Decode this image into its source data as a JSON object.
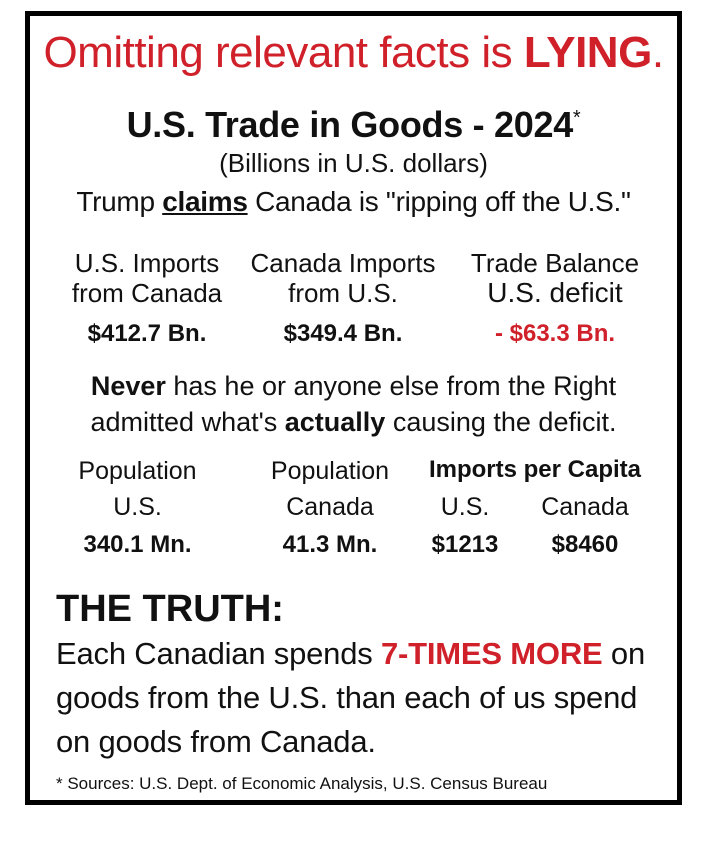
{
  "headline": {
    "prefix": "Omitting relevant facts is ",
    "emphasis": "LYING",
    "suffix": "."
  },
  "title": {
    "text": "U.S. Trade in Goods - 2024",
    "marker": "*"
  },
  "subtitle": "(Billions in U.S. dollars)",
  "claim": {
    "before": "Trump ",
    "underlined": "claims",
    "after": " Canada is \"ripping off the U.S.\""
  },
  "trade": {
    "us_imports": {
      "label1": "U.S. Imports",
      "label2": "from Canada",
      "value": "$412.7 Bn."
    },
    "canada_imports": {
      "label1": "Canada Imports",
      "label2": "from U.S.",
      "value": "$349.4 Bn."
    },
    "balance": {
      "label1": "Trade Balance",
      "label2": "U.S. deficit",
      "value": "- $63.3 Bn."
    }
  },
  "never": {
    "line1_bold": "Never",
    "line1_rest": " has he or anyone else from the Right",
    "line2_before": "admitted what's ",
    "line2_bold": "actually",
    "line2_after": " causing the deficit."
  },
  "population": {
    "us": {
      "label1": "Population",
      "label2": "U.S.",
      "value": "340.1 Mn."
    },
    "canada": {
      "label1": "Population",
      "label2": "Canada",
      "value": "41.3 Mn."
    },
    "per_capita_header": "Imports per Capita",
    "per_capita_us": {
      "label": "U.S.",
      "value": "$1213"
    },
    "per_capita_canada": {
      "label": "Canada",
      "value": "$8460"
    }
  },
  "truth": {
    "heading": "THE TRUTH:",
    "body_before": "Each Canadian spends ",
    "body_emphasis": "7-TIMES MORE",
    "body_after": " on goods from the U.S. than each of us spend on goods from Canada."
  },
  "sources": "* Sources: U.S. Dept. of Economic Analysis, U.S. Census Bureau",
  "colors": {
    "accent_red": "#d0202a",
    "text": "#111111",
    "border": "#000000"
  }
}
